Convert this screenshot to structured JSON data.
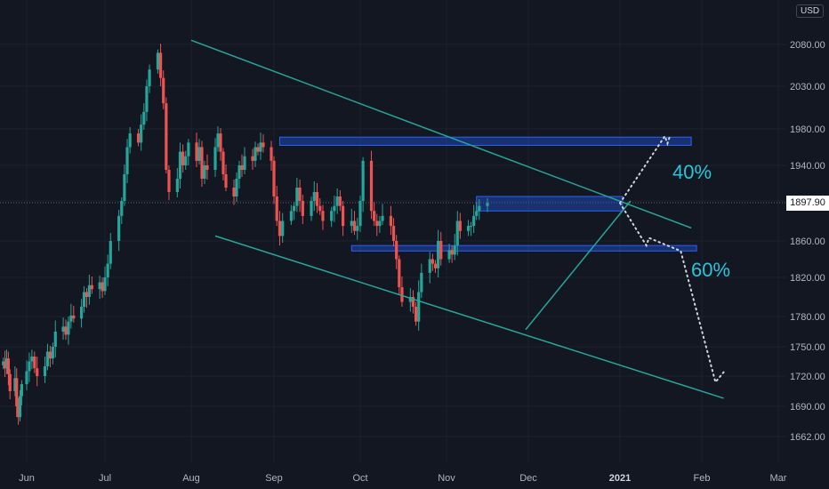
{
  "chart_data": {
    "type": "candlestick",
    "currency": "USD",
    "current_price_label": "1897.90",
    "current_price": 1897.9,
    "y_tick_labels": [
      "2080.00",
      "2030.00",
      "1980.00",
      "1940.00",
      "1900.00",
      "1860.00",
      "1820.00",
      "1780.00",
      "1750.00",
      "1720.00",
      "1690.00",
      "1662.00"
    ],
    "y_ticks": [
      2080,
      2030,
      1980,
      1940,
      1900,
      1860,
      1820,
      1780,
      1750,
      1720,
      1690,
      1662
    ],
    "x_tick_labels": [
      "Jun",
      "Jul",
      "Aug",
      "Sep",
      "Oct",
      "Nov",
      "Dec",
      "2021",
      "Feb",
      "Mar"
    ],
    "x_ticks": [
      "2020-06-01",
      "2020-07-01",
      "2020-08-01",
      "2020-09-01",
      "2020-10-01",
      "2020-11-01",
      "2020-12-01",
      "2021-01-01",
      "2021-02-01",
      "2021-03-01"
    ],
    "annotations": [
      "40%",
      "60%"
    ],
    "colors": {
      "up": "#26a69a",
      "down": "#ef5350",
      "trendline": "#26a69a",
      "zone": "#2962ff",
      "projection": "#d1d4dc",
      "label": "#26c6da"
    },
    "closes": [
      1735,
      1728,
      1738,
      1722,
      1705,
      1718,
      1690,
      1680,
      1700,
      1712,
      1725,
      1735,
      1740,
      1728,
      1720,
      1730,
      1745,
      1738,
      1750,
      1765,
      1770,
      1762,
      1775,
      1781,
      1778,
      1790,
      1805,
      1800,
      1812,
      1808,
      1815,
      1806,
      1820,
      1835,
      1860,
      1885,
      1900,
      1930,
      1960,
      1975,
      1965,
      1985,
      2000,
      2030,
      2050,
      2070,
      2040,
      2010,
      1935,
      1910,
      1925,
      1955,
      1940,
      1950,
      1965,
      1945,
      1960,
      1925,
      1940,
      1935,
      1960,
      1975,
      1955,
      1930,
      1915,
      1905,
      1925,
      1940,
      1935,
      1950,
      1945,
      1960,
      1955,
      1965,
      1960,
      1945,
      1905,
      1880,
      1865,
      1880,
      1890,
      1895,
      1915,
      1900,
      1885,
      1900,
      1910,
      1895,
      1890,
      1880,
      1890,
      1895,
      1905,
      1895,
      1875,
      1880,
      1870,
      1875,
      1900,
      1945,
      1890,
      1880,
      1875,
      1880,
      1885,
      1875,
      1860,
      1840,
      1810,
      1795,
      1800,
      1790,
      1775,
      1805,
      1825,
      1840,
      1835,
      1830,
      1860,
      1840,
      1850,
      1845,
      1855,
      1880,
      1870,
      1875,
      1875,
      1885,
      1890,
      1895,
      1897.9
    ],
    "zones": [
      {
        "date_from": "2020-09-03",
        "date_to": "2021-01-28",
        "price_low": 1962,
        "price_high": 1971
      },
      {
        "date_from": "2020-11-12",
        "date_to": "2021-01-02",
        "price_low": 1890,
        "price_high": 1905
      },
      {
        "date_from": "2020-09-28",
        "date_to": "2021-01-30",
        "price_low": 1849,
        "price_high": 1855
      }
    ],
    "trendlines": [
      {
        "from": [
          "2020-08-01",
          2085
        ],
        "to": [
          "2021-01-28",
          1873
        ]
      },
      {
        "from": [
          "2020-08-10",
          1865
        ],
        "to": [
          "2021-02-09",
          1698
        ]
      },
      {
        "from": [
          "2020-11-30",
          1767
        ],
        "to": [
          "2021-01-05",
          1900
        ]
      }
    ],
    "projections": [
      {
        "label": "40%",
        "path": [
          [
            "2021-01-01",
            1897.9
          ],
          [
            "2021-01-18",
            1972
          ],
          [
            "2021-01-19",
            1964
          ],
          [
            "2021-01-20",
            1973
          ]
        ]
      },
      {
        "label": "60%",
        "path": [
          [
            "2021-01-01",
            1897.9
          ],
          [
            "2021-01-11",
            1855
          ],
          [
            "2021-01-12",
            1863
          ],
          [
            "2021-01-24",
            1849
          ],
          [
            "2021-02-06",
            1714
          ],
          [
            "2021-02-09",
            1724
          ]
        ]
      }
    ]
  }
}
